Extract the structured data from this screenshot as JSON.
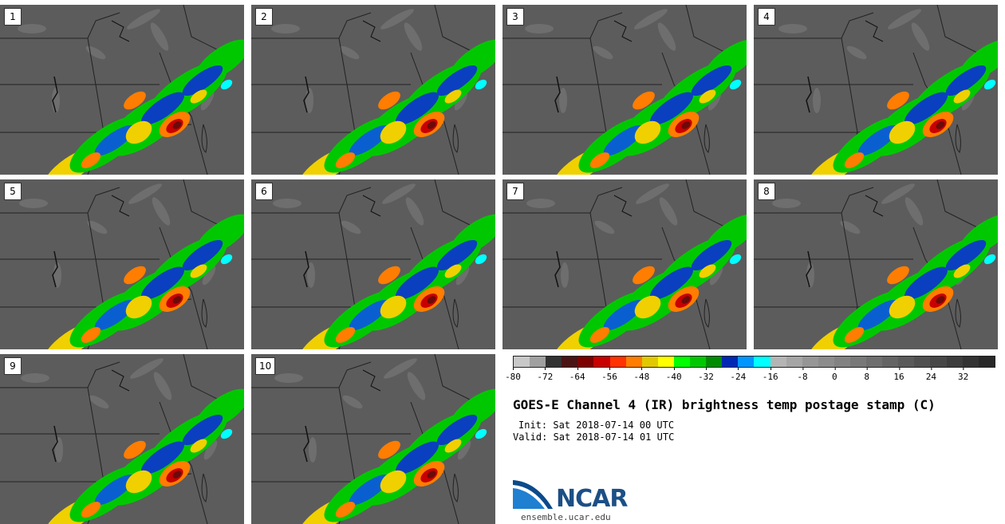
{
  "panels": [
    {
      "label": "1"
    },
    {
      "label": "2"
    },
    {
      "label": "3"
    },
    {
      "label": "4"
    },
    {
      "label": "5"
    },
    {
      "label": "6"
    },
    {
      "label": "7"
    },
    {
      "label": "8"
    },
    {
      "label": "9"
    },
    {
      "label": "10"
    }
  ],
  "colorbar": {
    "colors": [
      "#c8c8c8",
      "#a0a0a0",
      "#323232",
      "#4b1414",
      "#7d0000",
      "#c80000",
      "#ff3200",
      "#ff7d00",
      "#e1c800",
      "#ffff00",
      "#00ff00",
      "#00c800",
      "#008c00",
      "#0028b4",
      "#0096ff",
      "#00ffff",
      "#b4b4b4",
      "#a5a5a5",
      "#969696",
      "#8c8c8c",
      "#828282",
      "#787878",
      "#6e6e6e",
      "#646464",
      "#5a5a5a",
      "#505050",
      "#464646",
      "#3c3c3c",
      "#323232",
      "#282828"
    ],
    "ticks": [
      "-80",
      "-72",
      "-64",
      "-56",
      "-48",
      "-40",
      "-32",
      "-24",
      "-16",
      "-8",
      "0",
      "8",
      "16",
      "24",
      "32"
    ]
  },
  "title": "GOES-E Channel 4 (IR) brightness temp postage stamp (C)",
  "init": "Init: Sat 2018-07-14 00 UTC",
  "valid": "Valid: Sat 2018-07-14 01 UTC",
  "logo": {
    "text": "NCAR",
    "site": "ensemble.ucar.edu"
  }
}
